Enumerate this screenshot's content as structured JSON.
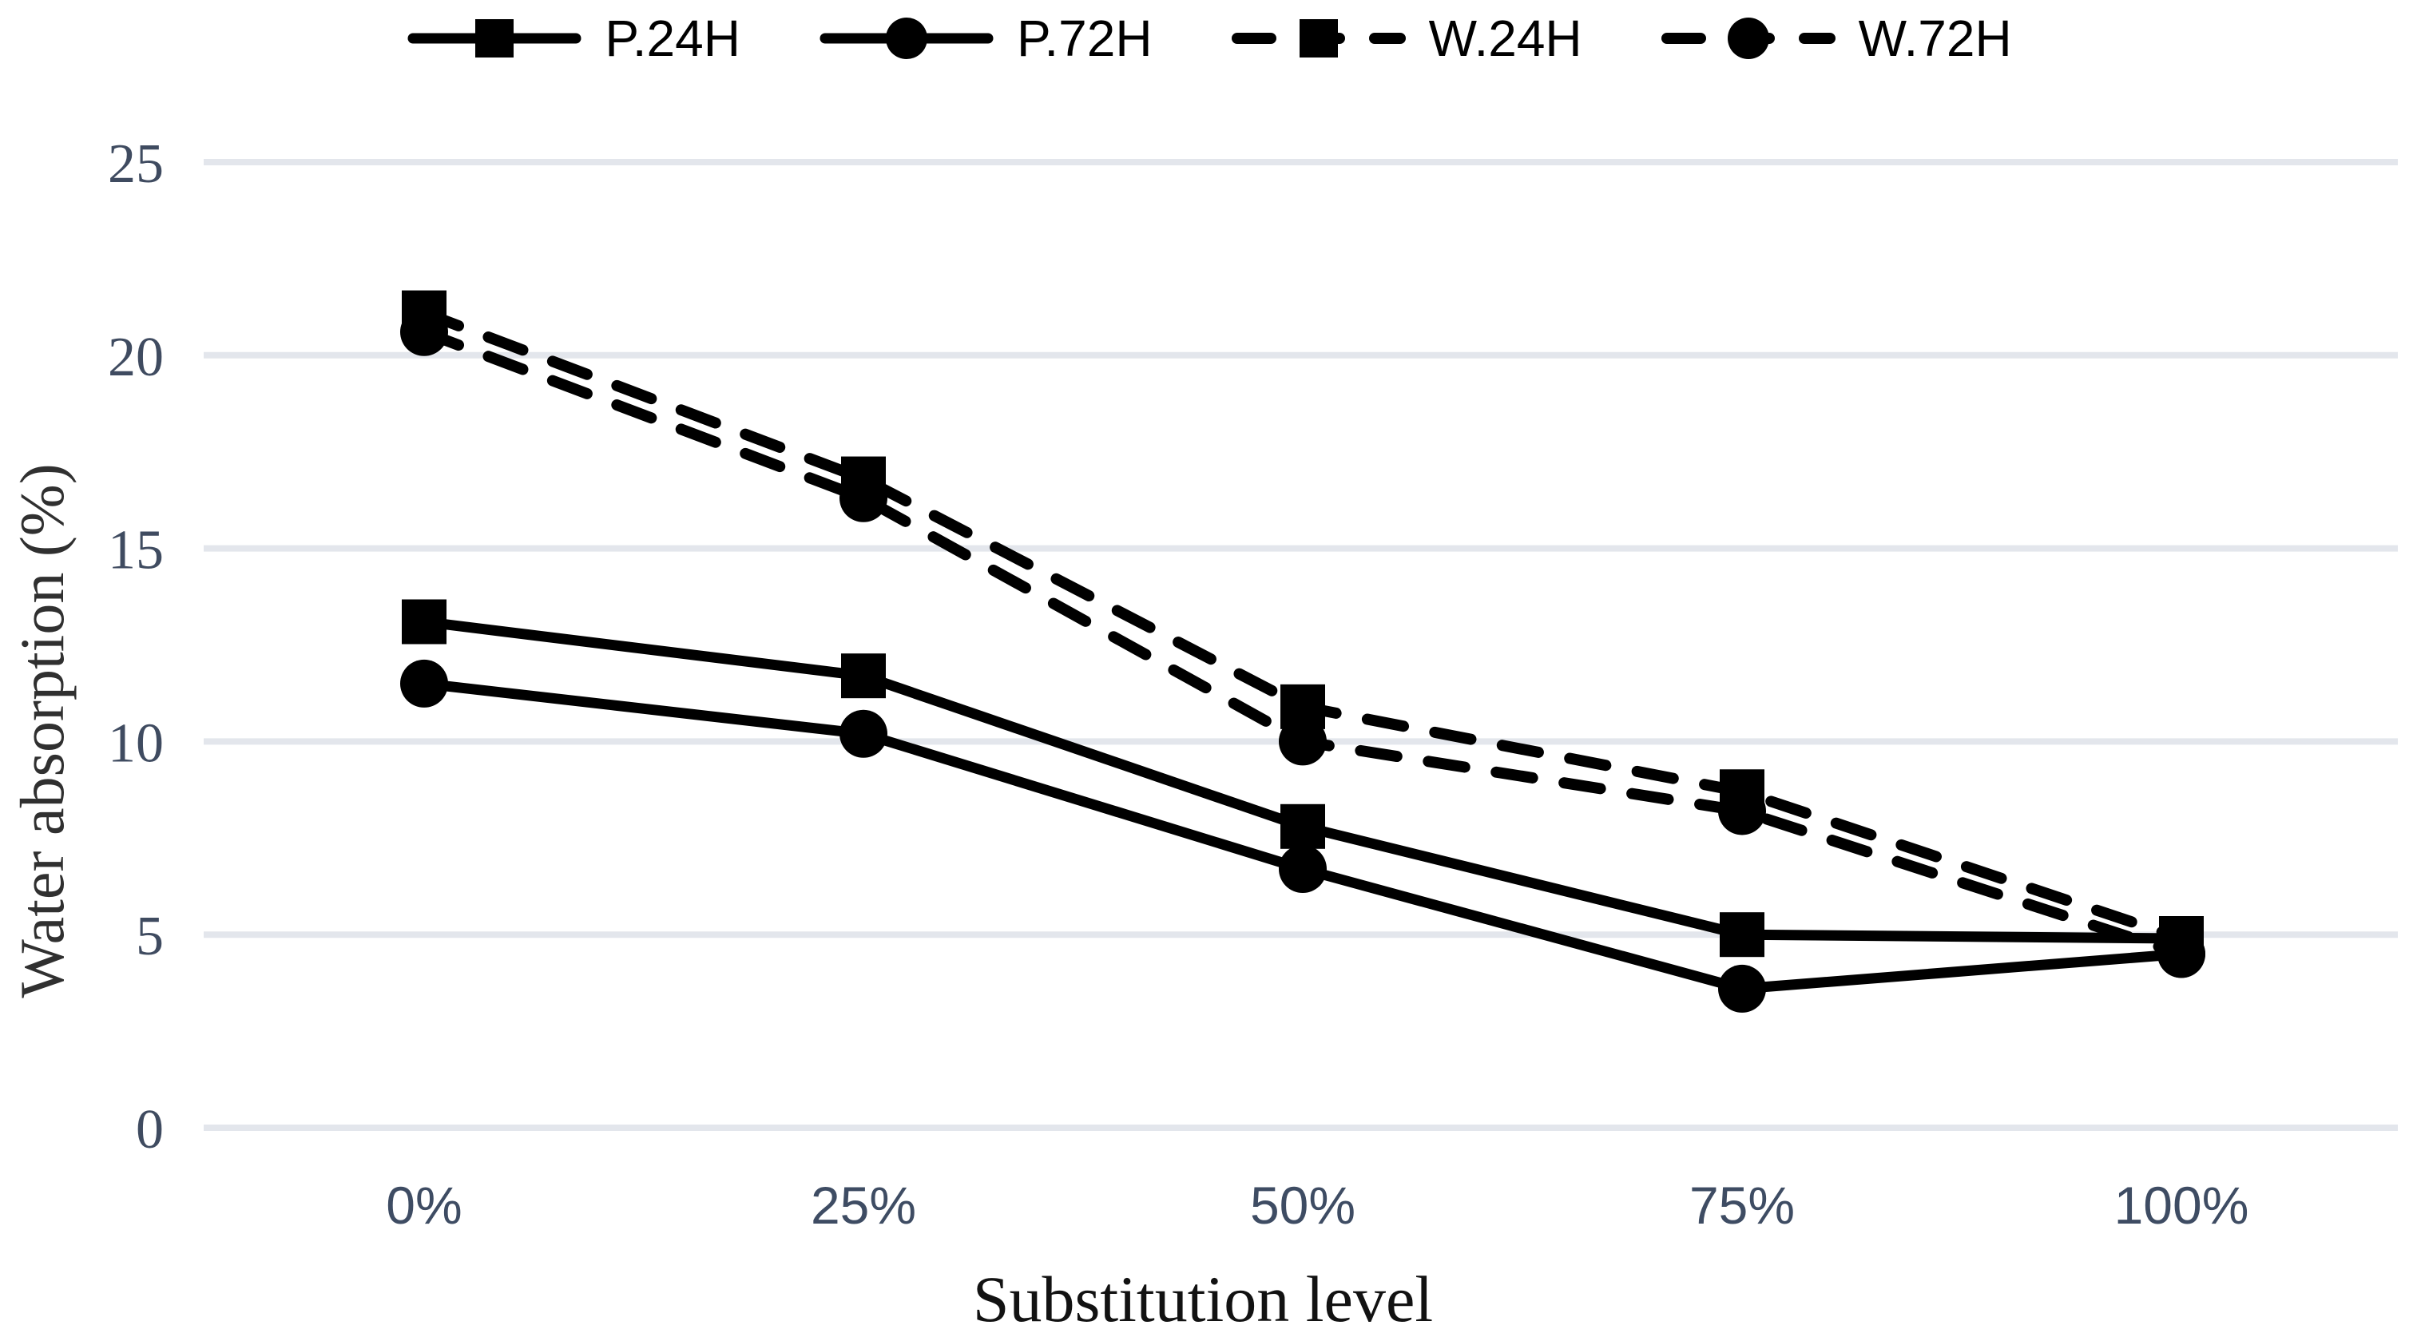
{
  "chart_data": {
    "type": "line",
    "title": "",
    "xlabel": "Substitution level",
    "ylabel": "Water absorption (%)",
    "categories": [
      "0%",
      "25%",
      "50%",
      "75%",
      "100%"
    ],
    "yticks": [
      0,
      5,
      10,
      15,
      20,
      25
    ],
    "ylim": [
      0,
      25
    ],
    "grid": "horizontal",
    "legend_position": "top",
    "series": [
      {
        "name": "P.24H",
        "marker": "square",
        "line": "solid",
        "values": [
          13.1,
          11.7,
          7.8,
          5.0,
          4.9
        ]
      },
      {
        "name": "P.72H",
        "marker": "circle",
        "line": "solid",
        "values": [
          11.5,
          10.2,
          6.7,
          3.6,
          4.5
        ]
      },
      {
        "name": "W.24H",
        "marker": "square",
        "line": "dashed",
        "values": [
          21.1,
          16.8,
          10.9,
          8.7,
          4.9
        ]
      },
      {
        "name": "W.72H",
        "marker": "circle",
        "line": "dashed",
        "values": [
          20.6,
          16.3,
          10.0,
          8.2,
          4.5
        ]
      }
    ]
  },
  "colors": {
    "series": "#000000",
    "gridline": "#E3E6EC",
    "y_tick_label": "#3F4B60",
    "x_tick_label": "#3E4C63",
    "y_axis_title": "#303030",
    "x_axis_title": "#121212",
    "legend_text": "#000000",
    "background": "#FFFFFF"
  }
}
